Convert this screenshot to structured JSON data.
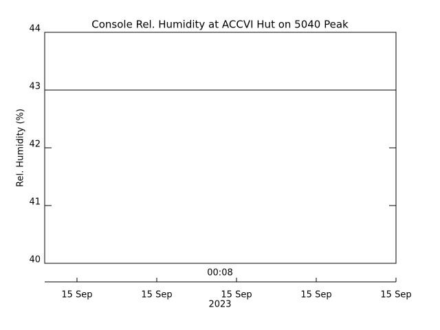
{
  "chart_data": {
    "type": "line",
    "title": "Console Rel. Humidity at ACCVI Hut on 5040 Peak",
    "y_label": "Rel. Humidity (%)",
    "annotations": [
      "00:08",
      "2023"
    ],
    "x": [
      -0.405,
      4
    ],
    "series": [
      {
        "name": "Rel. Humidity",
        "color": "#000000",
        "values": [
          43,
          43
        ]
      }
    ],
    "xlim": [
      -0.405,
      4
    ],
    "xticks": [
      {
        "value": 0,
        "label": "15 Sep"
      },
      {
        "value": 1,
        "label": "15 Sep"
      },
      {
        "value": 2,
        "label": "15 Sep"
      },
      {
        "value": 3,
        "label": "15 Sep"
      },
      {
        "value": 4,
        "label": "15 Sep"
      }
    ],
    "ylim": [
      40,
      44
    ],
    "yticks": [
      40,
      41,
      42,
      43,
      44
    ]
  }
}
